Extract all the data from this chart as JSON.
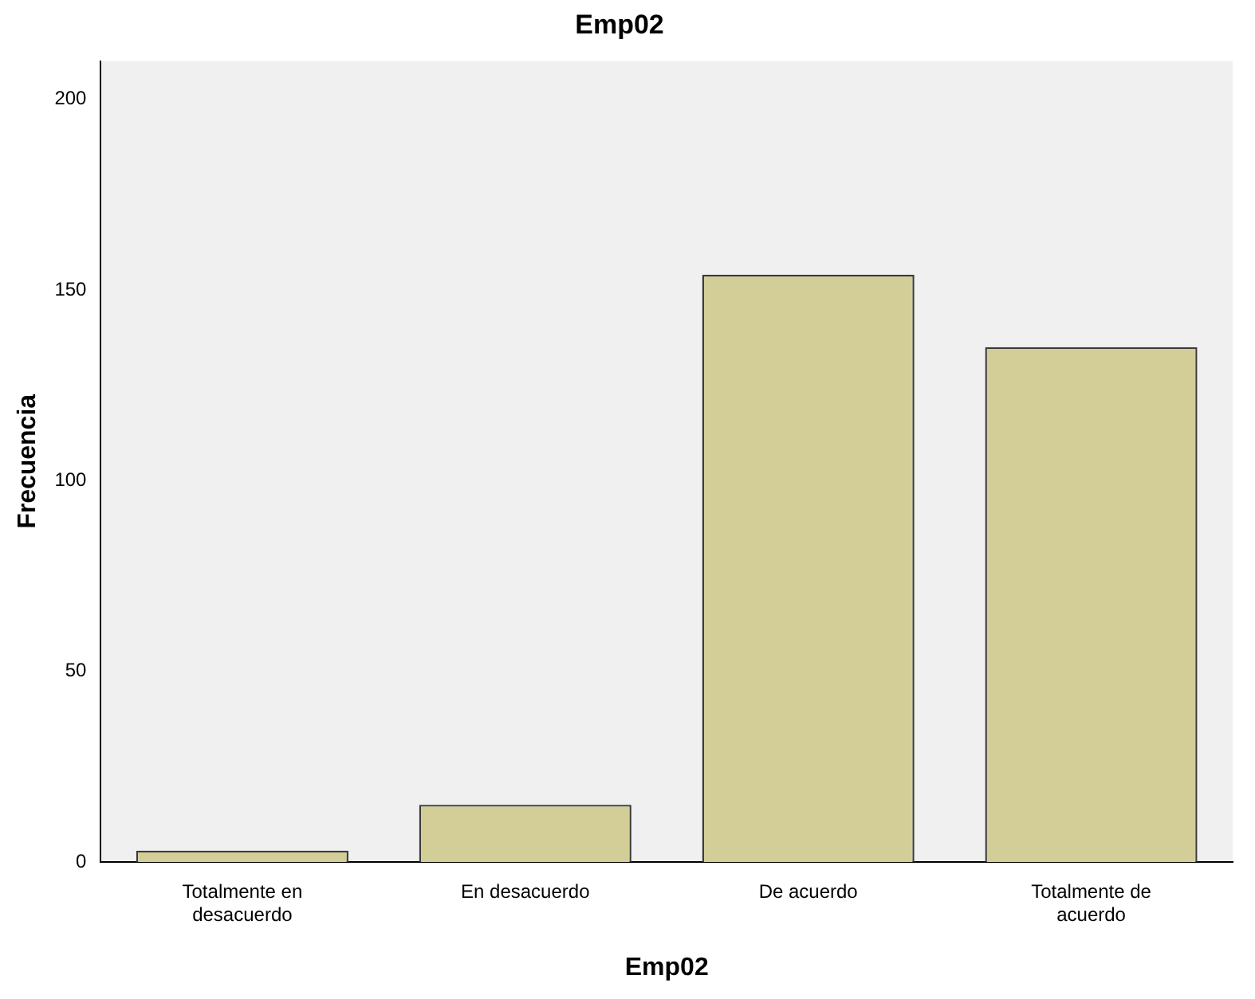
{
  "chart_data": {
    "type": "bar",
    "title": "Emp02",
    "xlabel": "Emp02",
    "ylabel": "Frecuencia",
    "categories": [
      "Totalmente en desacuerdo",
      "En desacuerdo",
      "De acuerdo",
      "Totalmente de acuerdo"
    ],
    "values": [
      3,
      15,
      154,
      135
    ],
    "color": "#d3ce97",
    "ylim": [
      0,
      210
    ],
    "yticks": [
      0,
      50,
      100,
      150,
      200
    ],
    "grid": false,
    "legend": false
  }
}
